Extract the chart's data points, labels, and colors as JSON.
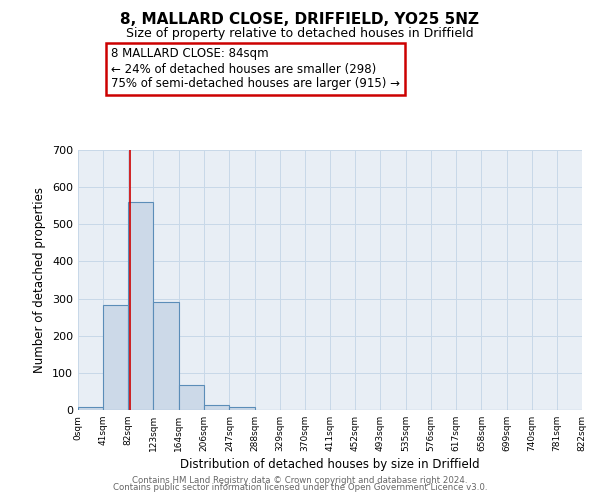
{
  "title": "8, MALLARD CLOSE, DRIFFIELD, YO25 5NZ",
  "subtitle": "Size of property relative to detached houses in Driffield",
  "xlabel": "Distribution of detached houses by size in Driffield",
  "ylabel": "Number of detached properties",
  "bin_edges": [
    0,
    41,
    82,
    123,
    164,
    206,
    247,
    288,
    329,
    370,
    411,
    452,
    493,
    535,
    576,
    617,
    658,
    699,
    740,
    781,
    822
  ],
  "bin_labels": [
    "0sqm",
    "41sqm",
    "82sqm",
    "123sqm",
    "164sqm",
    "206sqm",
    "247sqm",
    "288sqm",
    "329sqm",
    "370sqm",
    "411sqm",
    "452sqm",
    "493sqm",
    "535sqm",
    "576sqm",
    "617sqm",
    "658sqm",
    "699sqm",
    "740sqm",
    "781sqm",
    "822sqm"
  ],
  "counts": [
    7,
    282,
    560,
    292,
    68,
    14,
    9,
    0,
    0,
    0,
    0,
    0,
    0,
    0,
    0,
    0,
    0,
    0,
    0,
    0
  ],
  "bar_color": "#ccd9e8",
  "bar_edge_color": "#5b8db8",
  "grid_color": "#c8d8e8",
  "bg_color": "#e8eef5",
  "property_line_x": 84,
  "property_line_color": "#cc0000",
  "ylim": [
    0,
    700
  ],
  "yticks": [
    0,
    100,
    200,
    300,
    400,
    500,
    600,
    700
  ],
  "annotation_line1": "8 MALLARD CLOSE: 84sqm",
  "annotation_line2": "← 24% of detached houses are smaller (298)",
  "annotation_line3": "75% of semi-detached houses are larger (915) →",
  "footer_line1": "Contains HM Land Registry data © Crown copyright and database right 2024.",
  "footer_line2": "Contains public sector information licensed under the Open Government Licence v3.0."
}
